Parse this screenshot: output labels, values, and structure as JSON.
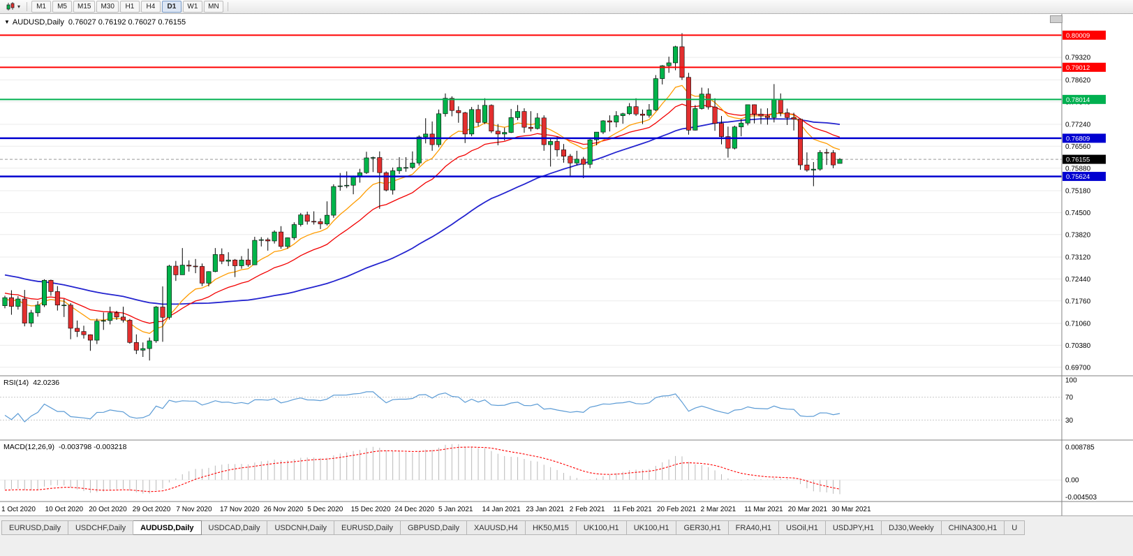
{
  "toolbar": {
    "chart_type_icon": "candlestick-chart-icon",
    "dropdown_glyph": "▾",
    "timeframes": [
      "M1",
      "M5",
      "M15",
      "M30",
      "H1",
      "H4",
      "D1",
      "W1",
      "MN"
    ],
    "active_timeframe": "D1"
  },
  "header": {
    "collapse_glyph": "▼",
    "symbol_tf": "AUDUSD,Daily",
    "ohlc_text": "0.76027 0.76192 0.76027 0.76155"
  },
  "rsi_panel": {
    "label": "RSI(14)",
    "value_text": "42.0236"
  },
  "macd_panel": {
    "label": "MACD(12,26,9)",
    "values_text": "-0.003798 -0.003218"
  },
  "tabs": {
    "items": [
      "EURUSD,Daily",
      "USDCHF,Daily",
      "AUDUSD,Daily",
      "USDCAD,Daily",
      "USDCNH,Daily",
      "EURUSD,Daily",
      "GBPUSD,Daily",
      "XAUUSD,H4",
      "HK50,M15",
      "UK100,H1",
      "UK100,H1",
      "GER30,H1",
      "FRA40,H1",
      "USOil,H1",
      "USDJPY,H1",
      "DJ30,Weekly",
      "CHINA300,H1",
      "U"
    ],
    "active_index": 2
  },
  "colors": {
    "bull": "#00b44a",
    "bear": "#e32f2f",
    "candle_outline": "#000000",
    "grid": "#ebebeb",
    "bid_line": "#999999",
    "separator": "#808080",
    "axis_text": "#000000"
  },
  "chart_data": {
    "type": "candlestick",
    "symbol": "AUDUSD",
    "timeframe": "Daily",
    "last": {
      "open": 0.76027,
      "high": 0.76192,
      "low": 0.76027,
      "close": 0.76155
    },
    "current_price": 0.76155,
    "price_range": [
      0.695,
      0.8045
    ],
    "price_axis_ticks": [
      "0.79320",
      "0.78620",
      "0.77940",
      "0.77240",
      "0.76560",
      "0.75880",
      "0.75180",
      "0.74500",
      "0.73820",
      "0.73120",
      "0.72440",
      "0.71760",
      "0.71060",
      "0.70380",
      "0.69700"
    ],
    "date_labels": [
      "1 Oct 2020",
      "10 Oct 2020",
      "20 Oct 2020",
      "29 Oct 2020",
      "7 Nov 2020",
      "17 Nov 2020",
      "26 Nov 2020",
      "5 Dec 2020",
      "15 Dec 2020",
      "24 Dec 2020",
      "5 Jan 2021",
      "14 Jan 2021",
      "23 Jan 2021",
      "2 Feb 2021",
      "11 Feb 2021",
      "20 Feb 2021",
      "2 Mar 2021",
      "11 Mar 2021",
      "20 Mar 2021",
      "30 Mar 2021"
    ],
    "hlines": [
      {
        "price": 0.80009,
        "color": "#ff0000",
        "width": 2
      },
      {
        "price": 0.79012,
        "color": "#ff0000",
        "width": 2
      },
      {
        "price": 0.78014,
        "color": "#00b050",
        "width": 2
      },
      {
        "price": 0.76809,
        "color": "#0000d0",
        "width": 2.5
      },
      {
        "price": 0.75624,
        "color": "#0000d0",
        "width": 2.5
      }
    ],
    "moving_averages": [
      {
        "period": 10,
        "method": "ema",
        "color": "#ff9c00",
        "width": 1.3
      },
      {
        "period": 21,
        "method": "ema",
        "color": "#f20000",
        "width": 1.3
      },
      {
        "period": 50,
        "method": "sma",
        "color": "#2323cf",
        "width": 1.8
      }
    ],
    "rsi": {
      "period": 14,
      "levels": [
        100,
        70,
        30
      ],
      "range": [
        0,
        100
      ],
      "color": "#5b9bd5",
      "current": 42.0236
    },
    "macd": {
      "fast": 12,
      "slow": 26,
      "signal": 9,
      "range": [
        -0.005,
        0.0095
      ],
      "axis_labels": [
        "0.008785",
        "0.00",
        "-0.004503"
      ],
      "hist_color": "#b9b9b9",
      "signal_color": "#ff0000",
      "current_main": -0.003798,
      "current_signal": -0.003218
    },
    "candles": [
      [
        "2020-10-01",
        0.7161,
        0.7192,
        0.7153,
        0.7186
      ],
      [
        "2020-10-02",
        0.7186,
        0.7209,
        0.7133,
        0.7159
      ],
      [
        "2020-10-05",
        0.7159,
        0.7191,
        0.7149,
        0.7182
      ],
      [
        "2020-10-06",
        0.7182,
        0.721,
        0.7097,
        0.7107
      ],
      [
        "2020-10-07",
        0.7107,
        0.7148,
        0.7095,
        0.7139
      ],
      [
        "2020-10-08",
        0.7139,
        0.7175,
        0.7127,
        0.7163
      ],
      [
        "2020-10-09",
        0.7163,
        0.7243,
        0.7157,
        0.724
      ],
      [
        "2020-10-12",
        0.724,
        0.7242,
        0.7192,
        0.7205
      ],
      [
        "2020-10-13",
        0.7205,
        0.7222,
        0.7146,
        0.7163
      ],
      [
        "2020-10-14",
        0.7163,
        0.7182,
        0.7126,
        0.7163
      ],
      [
        "2020-10-15",
        0.7163,
        0.7169,
        0.7057,
        0.7091
      ],
      [
        "2020-10-16",
        0.7091,
        0.7115,
        0.7064,
        0.7081
      ],
      [
        "2020-10-19",
        0.7081,
        0.7099,
        0.7059,
        0.7071
      ],
      [
        "2020-10-20",
        0.7071,
        0.7072,
        0.7021,
        0.7054
      ],
      [
        "2020-10-21",
        0.7054,
        0.7121,
        0.7042,
        0.7113
      ],
      [
        "2020-10-22",
        0.7113,
        0.714,
        0.7086,
        0.7115
      ],
      [
        "2020-10-23",
        0.7115,
        0.7158,
        0.7103,
        0.7139
      ],
      [
        "2020-10-26",
        0.7139,
        0.7145,
        0.7117,
        0.7126
      ],
      [
        "2020-10-27",
        0.7126,
        0.7158,
        0.7109,
        0.7116
      ],
      [
        "2020-10-28",
        0.7116,
        0.712,
        0.7043,
        0.7047
      ],
      [
        "2020-10-29",
        0.7047,
        0.7072,
        0.7011,
        0.7023
      ],
      [
        "2020-10-30",
        0.7023,
        0.7047,
        0.7002,
        0.7028
      ],
      [
        "2020-11-02",
        0.7028,
        0.7062,
        0.6991,
        0.7052
      ],
      [
        "2020-11-03",
        0.7052,
        0.716,
        0.7046,
        0.7157
      ],
      [
        "2020-11-04",
        0.7157,
        0.7221,
        0.7049,
        0.7125
      ],
      [
        "2020-11-05",
        0.7125,
        0.7288,
        0.7118,
        0.7284
      ],
      [
        "2020-11-06",
        0.7284,
        0.73,
        0.7238,
        0.7257
      ],
      [
        "2020-11-09",
        0.7257,
        0.734,
        0.7257,
        0.7287
      ],
      [
        "2020-11-10",
        0.7287,
        0.7302,
        0.7267,
        0.7284
      ],
      [
        "2020-11-11",
        0.7284,
        0.7306,
        0.7262,
        0.7283
      ],
      [
        "2020-11-12",
        0.7283,
        0.7292,
        0.7222,
        0.7231
      ],
      [
        "2020-11-13",
        0.7231,
        0.7268,
        0.7221,
        0.7267
      ],
      [
        "2020-11-16",
        0.7267,
        0.734,
        0.7265,
        0.732
      ],
      [
        "2020-11-17",
        0.732,
        0.7339,
        0.729,
        0.7299
      ],
      [
        "2020-11-18",
        0.7299,
        0.7327,
        0.7284,
        0.7303
      ],
      [
        "2020-11-19",
        0.7303,
        0.7306,
        0.725,
        0.7285
      ],
      [
        "2020-11-20",
        0.7285,
        0.7315,
        0.7276,
        0.7303
      ],
      [
        "2020-11-23",
        0.7303,
        0.7338,
        0.7282,
        0.7288
      ],
      [
        "2020-11-24",
        0.7288,
        0.7375,
        0.7287,
        0.7364
      ],
      [
        "2020-11-25",
        0.7364,
        0.7374,
        0.7345,
        0.7366
      ],
      [
        "2020-11-26",
        0.7366,
        0.7372,
        0.7332,
        0.7362
      ],
      [
        "2020-11-27",
        0.7362,
        0.7395,
        0.7354,
        0.739
      ],
      [
        "2020-11-30",
        0.739,
        0.7408,
        0.7338,
        0.7345
      ],
      [
        "2020-12-01",
        0.7345,
        0.7373,
        0.7338,
        0.7372
      ],
      [
        "2020-12-02",
        0.7372,
        0.742,
        0.7365,
        0.7413
      ],
      [
        "2020-12-03",
        0.7413,
        0.7449,
        0.7407,
        0.7443
      ],
      [
        "2020-12-04",
        0.7443,
        0.7453,
        0.7413,
        0.7423
      ],
      [
        "2020-12-07",
        0.7423,
        0.7454,
        0.7413,
        0.7422
      ],
      [
        "2020-12-08",
        0.7422,
        0.7432,
        0.7399,
        0.7415
      ],
      [
        "2020-12-09",
        0.7415,
        0.7485,
        0.741,
        0.7442
      ],
      [
        "2020-12-10",
        0.7442,
        0.7538,
        0.7434,
        0.7531
      ],
      [
        "2020-12-11",
        0.7531,
        0.7573,
        0.7518,
        0.7533
      ],
      [
        "2020-12-14",
        0.7533,
        0.7578,
        0.7526,
        0.7535
      ],
      [
        "2020-12-15",
        0.7535,
        0.7565,
        0.7507,
        0.7561
      ],
      [
        "2020-12-16",
        0.7561,
        0.7586,
        0.7543,
        0.7574
      ],
      [
        "2020-12-17",
        0.7574,
        0.7639,
        0.757,
        0.762
      ],
      [
        "2020-12-18",
        0.762,
        0.7624,
        0.7576,
        0.7621
      ],
      [
        "2020-12-21",
        0.7621,
        0.764,
        0.7462,
        0.7574
      ],
      [
        "2020-12-22",
        0.7574,
        0.7578,
        0.7516,
        0.752
      ],
      [
        "2020-12-23",
        0.752,
        0.759,
        0.7506,
        0.758
      ],
      [
        "2020-12-24",
        0.758,
        0.7622,
        0.757,
        0.759
      ],
      [
        "2020-12-28",
        0.759,
        0.7622,
        0.7577,
        0.759
      ],
      [
        "2020-12-29",
        0.759,
        0.764,
        0.7585,
        0.7604
      ],
      [
        "2020-12-30",
        0.7604,
        0.769,
        0.7596,
        0.7685
      ],
      [
        "2020-12-31",
        0.7685,
        0.7743,
        0.7665,
        0.7694
      ],
      [
        "2021-01-04",
        0.7694,
        0.7733,
        0.7642,
        0.7661
      ],
      [
        "2021-01-05",
        0.7661,
        0.777,
        0.7653,
        0.7757
      ],
      [
        "2021-01-06",
        0.7757,
        0.782,
        0.7748,
        0.7805
      ],
      [
        "2021-01-07",
        0.7805,
        0.7811,
        0.7749,
        0.7767
      ],
      [
        "2021-01-08",
        0.7767,
        0.778,
        0.7729,
        0.776
      ],
      [
        "2021-01-11",
        0.776,
        0.7763,
        0.7666,
        0.7694
      ],
      [
        "2021-01-12",
        0.7694,
        0.7778,
        0.7687,
        0.777
      ],
      [
        "2021-01-13",
        0.777,
        0.7785,
        0.7718,
        0.773
      ],
      [
        "2021-01-14",
        0.773,
        0.7805,
        0.7725,
        0.7783
      ],
      [
        "2021-01-15",
        0.7783,
        0.7786,
        0.7697,
        0.7703
      ],
      [
        "2021-01-18",
        0.7703,
        0.7725,
        0.7659,
        0.7694
      ],
      [
        "2021-01-19",
        0.7694,
        0.7714,
        0.7674,
        0.7699
      ],
      [
        "2021-01-20",
        0.7699,
        0.7772,
        0.7697,
        0.7745
      ],
      [
        "2021-01-21",
        0.7745,
        0.7784,
        0.7737,
        0.7764
      ],
      [
        "2021-01-22",
        0.7764,
        0.7774,
        0.7698,
        0.7715
      ],
      [
        "2021-01-25",
        0.7715,
        0.7765,
        0.7702,
        0.7711
      ],
      [
        "2021-01-26",
        0.7711,
        0.7759,
        0.7708,
        0.7744
      ],
      [
        "2021-01-27",
        0.7744,
        0.7752,
        0.7642,
        0.7661
      ],
      [
        "2021-01-28",
        0.7661,
        0.768,
        0.7593,
        0.7671
      ],
      [
        "2021-01-29",
        0.7671,
        0.7686,
        0.7624,
        0.7645
      ],
      [
        "2021-02-01",
        0.7645,
        0.7663,
        0.7605,
        0.7625
      ],
      [
        "2021-02-02",
        0.7625,
        0.7632,
        0.7563,
        0.7604
      ],
      [
        "2021-02-03",
        0.7604,
        0.7642,
        0.7596,
        0.7616
      ],
      [
        "2021-02-04",
        0.7616,
        0.7623,
        0.7557,
        0.76
      ],
      [
        "2021-02-05",
        0.76,
        0.768,
        0.7588,
        0.7676
      ],
      [
        "2021-02-08",
        0.7676,
        0.77,
        0.7659,
        0.77
      ],
      [
        "2021-02-09",
        0.77,
        0.7737,
        0.7694,
        0.7735
      ],
      [
        "2021-02-10",
        0.7735,
        0.7752,
        0.7702,
        0.7731
      ],
      [
        "2021-02-11",
        0.7731,
        0.7765,
        0.7715,
        0.7751
      ],
      [
        "2021-02-12",
        0.7751,
        0.776,
        0.7726,
        0.7757
      ],
      [
        "2021-02-15",
        0.7757,
        0.779,
        0.7753,
        0.7779
      ],
      [
        "2021-02-16",
        0.7779,
        0.7805,
        0.775,
        0.7756
      ],
      [
        "2021-02-17",
        0.7756,
        0.777,
        0.7725,
        0.7752
      ],
      [
        "2021-02-18",
        0.7752,
        0.7787,
        0.7745,
        0.7769
      ],
      [
        "2021-02-19",
        0.7769,
        0.7877,
        0.7765,
        0.7866
      ],
      [
        "2021-02-22",
        0.7866,
        0.7908,
        0.7848,
        0.7906
      ],
      [
        "2021-02-23",
        0.7906,
        0.7934,
        0.7884,
        0.7915
      ],
      [
        "2021-02-24",
        0.7915,
        0.7968,
        0.7892,
        0.7965
      ],
      [
        "2021-02-25",
        0.7965,
        0.8007,
        0.7862,
        0.787
      ],
      [
        "2021-02-26",
        0.787,
        0.7884,
        0.7692,
        0.7706
      ],
      [
        "2021-03-01",
        0.7706,
        0.7784,
        0.7705,
        0.7773
      ],
      [
        "2021-03-02",
        0.7773,
        0.7838,
        0.777,
        0.7818
      ],
      [
        "2021-03-03",
        0.7818,
        0.7836,
        0.777,
        0.7778
      ],
      [
        "2021-03-04",
        0.7778,
        0.7805,
        0.7704,
        0.7727
      ],
      [
        "2021-03-05",
        0.7727,
        0.775,
        0.7662,
        0.7686
      ],
      [
        "2021-03-08",
        0.7686,
        0.7717,
        0.7621,
        0.765
      ],
      [
        "2021-03-09",
        0.765,
        0.772,
        0.7646,
        0.7716
      ],
      [
        "2021-03-10",
        0.7716,
        0.774,
        0.7687,
        0.7728
      ],
      [
        "2021-03-11",
        0.7728,
        0.7785,
        0.7721,
        0.7785
      ],
      [
        "2021-03-12",
        0.7785,
        0.7786,
        0.7727,
        0.7756
      ],
      [
        "2021-03-15",
        0.7756,
        0.7773,
        0.7725,
        0.775
      ],
      [
        "2021-03-16",
        0.775,
        0.7774,
        0.7723,
        0.7745
      ],
      [
        "2021-03-17",
        0.7745,
        0.7849,
        0.773,
        0.78
      ],
      [
        "2021-03-18",
        0.78,
        0.782,
        0.7749,
        0.776
      ],
      [
        "2021-03-19",
        0.776,
        0.7773,
        0.7722,
        0.7745
      ],
      [
        "2021-03-22",
        0.7745,
        0.776,
        0.7705,
        0.774
      ],
      [
        "2021-03-23",
        0.774,
        0.7742,
        0.7583,
        0.7598
      ],
      [
        "2021-03-24",
        0.7598,
        0.7637,
        0.7577,
        0.7582
      ],
      [
        "2021-03-25",
        0.7582,
        0.7607,
        0.7532,
        0.7585
      ],
      [
        "2021-03-26",
        0.7585,
        0.7644,
        0.758,
        0.7637
      ],
      [
        "2021-03-29",
        0.7637,
        0.7648,
        0.7598,
        0.7636
      ],
      [
        "2021-03-30",
        0.7636,
        0.7644,
        0.7588,
        0.7598
      ],
      [
        "2021-03-31",
        0.76027,
        0.76192,
        0.76027,
        0.76155
      ]
    ]
  }
}
